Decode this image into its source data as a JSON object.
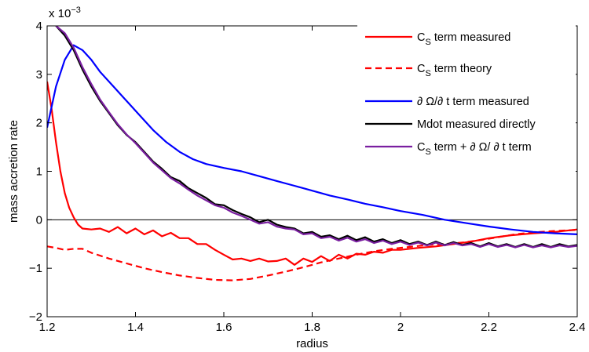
{
  "chart_data": {
    "type": "line",
    "xlabel": "radius",
    "ylabel": "mass accretion rate",
    "y_multiplier": "x 10",
    "y_exponent": "−3",
    "xlim": [
      1.2,
      2.4
    ],
    "ylim": [
      -2,
      4
    ],
    "x_ticks": [
      1.2,
      1.4,
      1.6,
      1.8,
      2.0,
      2.2,
      2.4
    ],
    "x_tick_labels": [
      "1.2",
      "1.4",
      "1.6",
      "1.8",
      "2",
      "2.2",
      "2.4"
    ],
    "y_ticks": [
      -2,
      -1,
      0,
      1,
      2,
      3,
      4
    ],
    "y_tick_labels": [
      "−2",
      "−1",
      "0",
      "1",
      "2",
      "3",
      "4"
    ],
    "zero_line": true,
    "legend_position": "top-right",
    "series": [
      {
        "name": "C_S term measured",
        "legend": {
          "base": "C",
          "sub": "S",
          "rest": " term measured"
        },
        "color": "#ff0000",
        "dash": "solid",
        "points": [
          [
            1.2,
            2.85
          ],
          [
            1.21,
            2.3
          ],
          [
            1.22,
            1.6
          ],
          [
            1.23,
            1.0
          ],
          [
            1.24,
            0.55
          ],
          [
            1.25,
            0.25
          ],
          [
            1.26,
            0.05
          ],
          [
            1.27,
            -0.1
          ],
          [
            1.28,
            -0.18
          ],
          [
            1.3,
            -0.2
          ],
          [
            1.32,
            -0.18
          ],
          [
            1.34,
            -0.25
          ],
          [
            1.36,
            -0.15
          ],
          [
            1.38,
            -0.28
          ],
          [
            1.4,
            -0.18
          ],
          [
            1.42,
            -0.3
          ],
          [
            1.44,
            -0.22
          ],
          [
            1.46,
            -0.34
          ],
          [
            1.48,
            -0.27
          ],
          [
            1.5,
            -0.38
          ],
          [
            1.52,
            -0.38
          ],
          [
            1.54,
            -0.5
          ],
          [
            1.56,
            -0.5
          ],
          [
            1.58,
            -0.62
          ],
          [
            1.6,
            -0.72
          ],
          [
            1.62,
            -0.82
          ],
          [
            1.64,
            -0.8
          ],
          [
            1.66,
            -0.85
          ],
          [
            1.68,
            -0.8
          ],
          [
            1.7,
            -0.86
          ],
          [
            1.72,
            -0.85
          ],
          [
            1.74,
            -0.8
          ],
          [
            1.76,
            -0.93
          ],
          [
            1.78,
            -0.8
          ],
          [
            1.8,
            -0.87
          ],
          [
            1.82,
            -0.75
          ],
          [
            1.84,
            -0.85
          ],
          [
            1.86,
            -0.72
          ],
          [
            1.88,
            -0.8
          ],
          [
            1.9,
            -0.7
          ],
          [
            1.92,
            -0.72
          ],
          [
            1.94,
            -0.66
          ],
          [
            1.96,
            -0.68
          ],
          [
            1.98,
            -0.62
          ],
          [
            2.0,
            -0.62
          ],
          [
            2.04,
            -0.58
          ],
          [
            2.08,
            -0.55
          ],
          [
            2.12,
            -0.5
          ],
          [
            2.16,
            -0.45
          ],
          [
            2.2,
            -0.38
          ],
          [
            2.25,
            -0.32
          ],
          [
            2.3,
            -0.28
          ],
          [
            2.35,
            -0.25
          ],
          [
            2.4,
            -0.2
          ]
        ]
      },
      {
        "name": "C_S term theory",
        "legend": {
          "base": "C",
          "sub": "S",
          "rest": " term theory"
        },
        "color": "#ff0000",
        "dash": "dashed",
        "points": [
          [
            1.2,
            -0.55
          ],
          [
            1.22,
            -0.58
          ],
          [
            1.24,
            -0.62
          ],
          [
            1.26,
            -0.6
          ],
          [
            1.28,
            -0.6
          ],
          [
            1.3,
            -0.68
          ],
          [
            1.34,
            -0.8
          ],
          [
            1.38,
            -0.9
          ],
          [
            1.42,
            -1.0
          ],
          [
            1.46,
            -1.08
          ],
          [
            1.5,
            -1.15
          ],
          [
            1.54,
            -1.2
          ],
          [
            1.58,
            -1.24
          ],
          [
            1.62,
            -1.25
          ],
          [
            1.66,
            -1.22
          ],
          [
            1.7,
            -1.15
          ],
          [
            1.74,
            -1.07
          ],
          [
            1.78,
            -0.98
          ],
          [
            1.82,
            -0.88
          ],
          [
            1.86,
            -0.8
          ],
          [
            1.9,
            -0.72
          ],
          [
            1.94,
            -0.65
          ],
          [
            1.98,
            -0.6
          ],
          [
            2.02,
            -0.56
          ],
          [
            2.06,
            -0.52
          ],
          [
            2.1,
            -0.5
          ],
          [
            2.14,
            -0.47
          ],
          [
            2.18,
            -0.42
          ],
          [
            2.22,
            -0.36
          ],
          [
            2.26,
            -0.3
          ],
          [
            2.3,
            -0.26
          ],
          [
            2.35,
            -0.23
          ],
          [
            2.4,
            -0.21
          ]
        ]
      },
      {
        "name": "∂ Ω/∂ t term measured",
        "legend": {
          "base": "∂ Ω/∂ t term measured",
          "sub": "",
          "rest": ""
        },
        "color": "#0000ff",
        "dash": "solid",
        "points": [
          [
            1.2,
            1.9
          ],
          [
            1.22,
            2.75
          ],
          [
            1.24,
            3.3
          ],
          [
            1.26,
            3.6
          ],
          [
            1.28,
            3.5
          ],
          [
            1.3,
            3.3
          ],
          [
            1.32,
            3.05
          ],
          [
            1.35,
            2.75
          ],
          [
            1.38,
            2.45
          ],
          [
            1.41,
            2.15
          ],
          [
            1.44,
            1.85
          ],
          [
            1.47,
            1.6
          ],
          [
            1.5,
            1.4
          ],
          [
            1.53,
            1.25
          ],
          [
            1.56,
            1.15
          ],
          [
            1.6,
            1.07
          ],
          [
            1.64,
            1.0
          ],
          [
            1.68,
            0.9
          ],
          [
            1.72,
            0.8
          ],
          [
            1.76,
            0.7
          ],
          [
            1.8,
            0.6
          ],
          [
            1.84,
            0.5
          ],
          [
            1.88,
            0.42
          ],
          [
            1.92,
            0.33
          ],
          [
            1.96,
            0.26
          ],
          [
            2.0,
            0.18
          ],
          [
            2.05,
            0.1
          ],
          [
            2.1,
            0.0
          ],
          [
            2.15,
            -0.07
          ],
          [
            2.2,
            -0.14
          ],
          [
            2.25,
            -0.2
          ],
          [
            2.3,
            -0.25
          ],
          [
            2.35,
            -0.28
          ],
          [
            2.4,
            -0.3
          ]
        ]
      },
      {
        "name": "Mdot measured directly",
        "legend": {
          "base": "Mdot measured directly",
          "sub": "",
          "rest": ""
        },
        "color": "#000000",
        "dash": "solid",
        "points": [
          [
            1.22,
            4.0
          ],
          [
            1.24,
            3.8
          ],
          [
            1.26,
            3.5
          ],
          [
            1.28,
            3.1
          ],
          [
            1.3,
            2.75
          ],
          [
            1.32,
            2.45
          ],
          [
            1.34,
            2.2
          ],
          [
            1.36,
            1.95
          ],
          [
            1.38,
            1.75
          ],
          [
            1.4,
            1.6
          ],
          [
            1.42,
            1.4
          ],
          [
            1.44,
            1.2
          ],
          [
            1.46,
            1.05
          ],
          [
            1.48,
            0.88
          ],
          [
            1.5,
            0.8
          ],
          [
            1.52,
            0.65
          ],
          [
            1.54,
            0.55
          ],
          [
            1.56,
            0.45
          ],
          [
            1.58,
            0.32
          ],
          [
            1.6,
            0.3
          ],
          [
            1.62,
            0.2
          ],
          [
            1.64,
            0.12
          ],
          [
            1.66,
            0.05
          ],
          [
            1.68,
            -0.05
          ],
          [
            1.7,
            0.0
          ],
          [
            1.72,
            -0.1
          ],
          [
            1.74,
            -0.15
          ],
          [
            1.76,
            -0.18
          ],
          [
            1.78,
            -0.28
          ],
          [
            1.8,
            -0.25
          ],
          [
            1.82,
            -0.35
          ],
          [
            1.84,
            -0.32
          ],
          [
            1.86,
            -0.4
          ],
          [
            1.88,
            -0.33
          ],
          [
            1.9,
            -0.42
          ],
          [
            1.92,
            -0.36
          ],
          [
            1.94,
            -0.45
          ],
          [
            1.96,
            -0.4
          ],
          [
            1.98,
            -0.48
          ],
          [
            2.0,
            -0.42
          ],
          [
            2.02,
            -0.5
          ],
          [
            2.04,
            -0.45
          ],
          [
            2.06,
            -0.52
          ],
          [
            2.08,
            -0.45
          ],
          [
            2.1,
            -0.52
          ],
          [
            2.12,
            -0.46
          ],
          [
            2.14,
            -0.52
          ],
          [
            2.16,
            -0.48
          ],
          [
            2.18,
            -0.55
          ],
          [
            2.2,
            -0.48
          ],
          [
            2.22,
            -0.55
          ],
          [
            2.24,
            -0.5
          ],
          [
            2.26,
            -0.56
          ],
          [
            2.28,
            -0.5
          ],
          [
            2.3,
            -0.56
          ],
          [
            2.32,
            -0.5
          ],
          [
            2.34,
            -0.56
          ],
          [
            2.36,
            -0.5
          ],
          [
            2.38,
            -0.55
          ],
          [
            2.4,
            -0.52
          ]
        ]
      },
      {
        "name": "C_S term + ∂ Ω/ ∂ t term",
        "legend": {
          "base": "C",
          "sub": "S",
          "rest": " term + ∂ Ω/ ∂ t term"
        },
        "color": "#7a1fa0",
        "dash": "solid",
        "points": [
          [
            1.22,
            4.0
          ],
          [
            1.24,
            3.85
          ],
          [
            1.26,
            3.55
          ],
          [
            1.28,
            3.15
          ],
          [
            1.3,
            2.8
          ],
          [
            1.32,
            2.48
          ],
          [
            1.34,
            2.22
          ],
          [
            1.36,
            1.97
          ],
          [
            1.38,
            1.76
          ],
          [
            1.4,
            1.58
          ],
          [
            1.42,
            1.38
          ],
          [
            1.44,
            1.18
          ],
          [
            1.46,
            1.02
          ],
          [
            1.48,
            0.86
          ],
          [
            1.5,
            0.75
          ],
          [
            1.52,
            0.62
          ],
          [
            1.54,
            0.5
          ],
          [
            1.56,
            0.4
          ],
          [
            1.58,
            0.3
          ],
          [
            1.6,
            0.25
          ],
          [
            1.62,
            0.15
          ],
          [
            1.64,
            0.08
          ],
          [
            1.66,
            0.0
          ],
          [
            1.68,
            -0.08
          ],
          [
            1.7,
            -0.05
          ],
          [
            1.72,
            -0.14
          ],
          [
            1.74,
            -0.18
          ],
          [
            1.76,
            -0.2
          ],
          [
            1.78,
            -0.3
          ],
          [
            1.8,
            -0.28
          ],
          [
            1.82,
            -0.38
          ],
          [
            1.84,
            -0.35
          ],
          [
            1.86,
            -0.43
          ],
          [
            1.88,
            -0.37
          ],
          [
            1.9,
            -0.45
          ],
          [
            1.92,
            -0.4
          ],
          [
            1.94,
            -0.48
          ],
          [
            1.96,
            -0.43
          ],
          [
            1.98,
            -0.5
          ],
          [
            2.0,
            -0.45
          ],
          [
            2.02,
            -0.52
          ],
          [
            2.04,
            -0.47
          ],
          [
            2.06,
            -0.53
          ],
          [
            2.08,
            -0.47
          ],
          [
            2.1,
            -0.53
          ],
          [
            2.12,
            -0.48
          ],
          [
            2.14,
            -0.53
          ],
          [
            2.16,
            -0.5
          ],
          [
            2.18,
            -0.56
          ],
          [
            2.2,
            -0.5
          ],
          [
            2.22,
            -0.56
          ],
          [
            2.24,
            -0.52
          ],
          [
            2.26,
            -0.57
          ],
          [
            2.28,
            -0.52
          ],
          [
            2.3,
            -0.57
          ],
          [
            2.32,
            -0.53
          ],
          [
            2.34,
            -0.57
          ],
          [
            2.36,
            -0.53
          ],
          [
            2.38,
            -0.56
          ],
          [
            2.4,
            -0.54
          ]
        ]
      }
    ]
  }
}
